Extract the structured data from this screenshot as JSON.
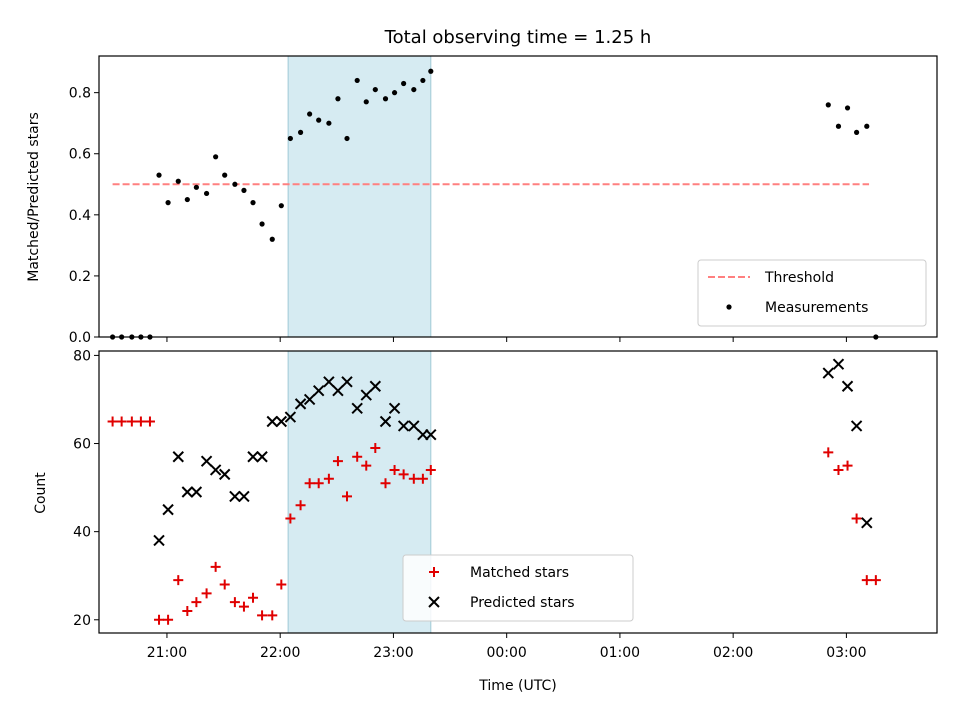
{
  "figure": {
    "title": "Total observing time = 1.25 h"
  },
  "colors": {
    "threshold": "#ff8080",
    "measurement": "#000000",
    "matched": "#e00000",
    "predicted": "#000000",
    "span": "#add8e6"
  },
  "chart_data": [
    {
      "type": "scatter",
      "title": "Total observing time = 1.25 h",
      "xlabel": "",
      "ylabel": "Matched/Predicted stars",
      "ylim": [
        0,
        0.92
      ],
      "yticks": [
        "0.0",
        "0.2",
        "0.4",
        "0.6",
        "0.8"
      ],
      "xlim": [
        20.4,
        27.8
      ],
      "x_tick_positions": [
        21,
        22,
        23,
        24,
        25,
        26,
        27
      ],
      "x_tick_labels": [],
      "highlight_span": [
        22.07,
        23.33
      ],
      "grid": false,
      "legend": "bottom-right",
      "series": [
        {
          "name": "Threshold",
          "style": "dashed-line",
          "x": [
            20.52,
            27.2
          ],
          "y": [
            0.5,
            0.5
          ]
        },
        {
          "name": "Measurements",
          "style": "dots",
          "x": [
            20.52,
            20.6,
            20.69,
            20.77,
            20.85,
            20.93,
            21.01,
            21.1,
            21.18,
            21.26,
            21.35,
            21.43,
            21.51,
            21.6,
            21.68,
            21.76,
            21.84,
            21.93,
            22.01,
            22.09,
            22.18,
            22.26,
            22.34,
            22.43,
            22.51,
            22.59,
            22.68,
            22.76,
            22.84,
            22.93,
            23.01,
            23.09,
            23.18,
            23.26,
            23.33,
            26.84,
            26.93,
            27.01,
            27.09,
            27.18,
            27.26
          ],
          "y": [
            0.0,
            0.0,
            0.0,
            0.0,
            0.0,
            0.53,
            0.44,
            0.51,
            0.45,
            0.49,
            0.47,
            0.59,
            0.53,
            0.5,
            0.48,
            0.44,
            0.37,
            0.32,
            0.43,
            0.65,
            0.67,
            0.73,
            0.71,
            0.7,
            0.78,
            0.65,
            0.84,
            0.77,
            0.81,
            0.78,
            0.8,
            0.83,
            0.81,
            0.84,
            0.87,
            0.76,
            0.69,
            0.75,
            0.67,
            0.69,
            0.0
          ]
        }
      ]
    },
    {
      "type": "scatter",
      "title": "",
      "xlabel": "Time (UTC)",
      "ylabel": "Count",
      "ylim": [
        17,
        81
      ],
      "yticks": [
        "20",
        "40",
        "60",
        "80"
      ],
      "xlim": [
        20.4,
        27.8
      ],
      "x_tick_positions": [
        21,
        22,
        23,
        24,
        25,
        26,
        27
      ],
      "x_tick_labels": [
        "21:00",
        "22:00",
        "23:00",
        "00:00",
        "01:00",
        "02:00",
        "03:00"
      ],
      "highlight_span": [
        22.07,
        23.33
      ],
      "grid": false,
      "legend": "lower-center",
      "series": [
        {
          "name": "Matched stars",
          "marker": "+",
          "x": [
            20.52,
            20.6,
            20.69,
            20.77,
            20.85,
            20.93,
            21.01,
            21.1,
            21.18,
            21.26,
            21.35,
            21.43,
            21.51,
            21.6,
            21.68,
            21.76,
            21.84,
            21.93,
            22.01,
            22.09,
            22.18,
            22.26,
            22.34,
            22.43,
            22.51,
            22.59,
            22.68,
            22.76,
            22.84,
            22.93,
            23.01,
            23.09,
            23.18,
            23.26,
            23.33,
            26.84,
            26.93,
            27.01,
            27.09,
            27.18,
            27.26
          ],
          "y": [
            65,
            65,
            65,
            65,
            65,
            20,
            20,
            29,
            22,
            24,
            26,
            32,
            28,
            24,
            23,
            25,
            21,
            21,
            28,
            43,
            46,
            51,
            51,
            52,
            56,
            48,
            57,
            55,
            59,
            51,
            54,
            53,
            52,
            52,
            54,
            58,
            54,
            55,
            43,
            29,
            29
          ]
        },
        {
          "name": "Predicted stars",
          "marker": "x",
          "x": [
            20.93,
            21.01,
            21.1,
            21.18,
            21.26,
            21.35,
            21.43,
            21.51,
            21.6,
            21.68,
            21.76,
            21.84,
            21.93,
            22.01,
            22.09,
            22.18,
            22.26,
            22.34,
            22.43,
            22.51,
            22.59,
            22.68,
            22.76,
            22.84,
            22.93,
            23.01,
            23.09,
            23.18,
            23.26,
            23.33,
            26.84,
            26.93,
            27.01,
            27.09,
            27.18
          ],
          "y": [
            38,
            45,
            57,
            49,
            49,
            56,
            54,
            53,
            48,
            48,
            57,
            57,
            65,
            65,
            66,
            69,
            70,
            72,
            74,
            72,
            74,
            68,
            71,
            73,
            65,
            68,
            64,
            64,
            62,
            62,
            76,
            78,
            73,
            64,
            42
          ]
        }
      ]
    }
  ]
}
